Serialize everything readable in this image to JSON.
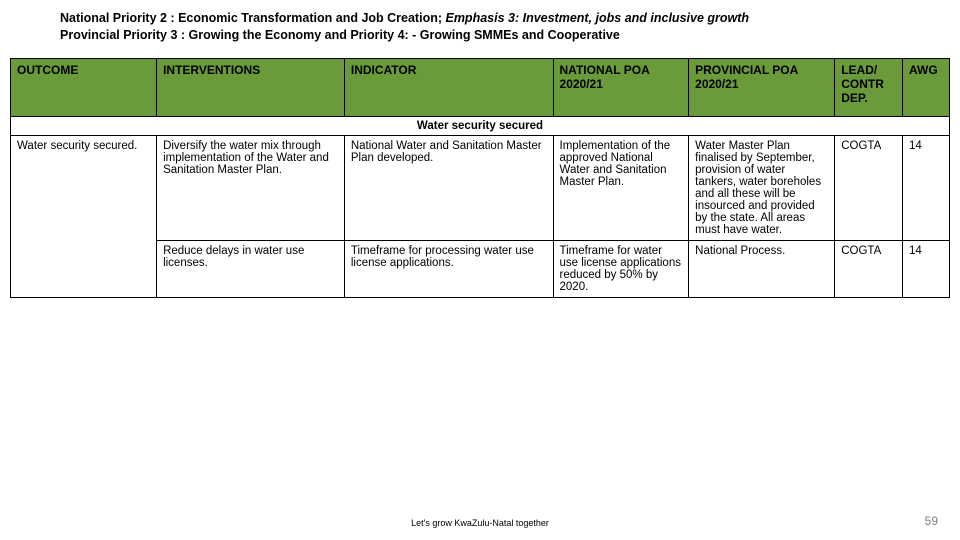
{
  "heading": {
    "line1_prefix": "National Priority 2 : Economic Transformation and Job Creation; ",
    "line1_emph": "Emphasis 3: Investment, jobs and inclusive growth",
    "line2": "Provincial Priority 3 : Growing the Economy and Priority 4: - Growing SMMEs and Cooperative"
  },
  "columns": {
    "outcome": "OUTCOME",
    "interventions": "INTERVENTIONS",
    "indicator": "INDICATOR",
    "national": "NATIONAL POA 2020/21",
    "provincial": "PROVINCIAL POA 2020/21",
    "lead": "LEAD/ CONTR DEP.",
    "awg": "AWG"
  },
  "section_title": "Water security secured",
  "outcome_cell": "Water security secured.",
  "rows": [
    {
      "intervention": "Diversify the water mix through implementation of the Water and Sanitation Master Plan.",
      "indicator": "National Water and Sanitation Master Plan developed.",
      "national": "Implementation of the approved National Water and Sanitation Master Plan.",
      "provincial": "Water Master Plan finalised by September, provision of water tankers, water boreholes and all these will be insourced and provided by the state. All areas must have water.",
      "lead": "COGTA",
      "awg": "14"
    },
    {
      "intervention": "Reduce delays in water use licenses.",
      "indicator": "Timeframe for processing water use license applications.",
      "national": "Timeframe for water use license applications reduced by 50% by 2020.",
      "provincial": "National Process.",
      "lead": "COGTA",
      "awg": "14"
    }
  ],
  "footer_text": "Let's grow KwaZulu-Natal together",
  "page_number": "59",
  "colors": {
    "header_bg": "#6a9a3a",
    "border": "#000000",
    "page_num": "#7f7f7f"
  }
}
